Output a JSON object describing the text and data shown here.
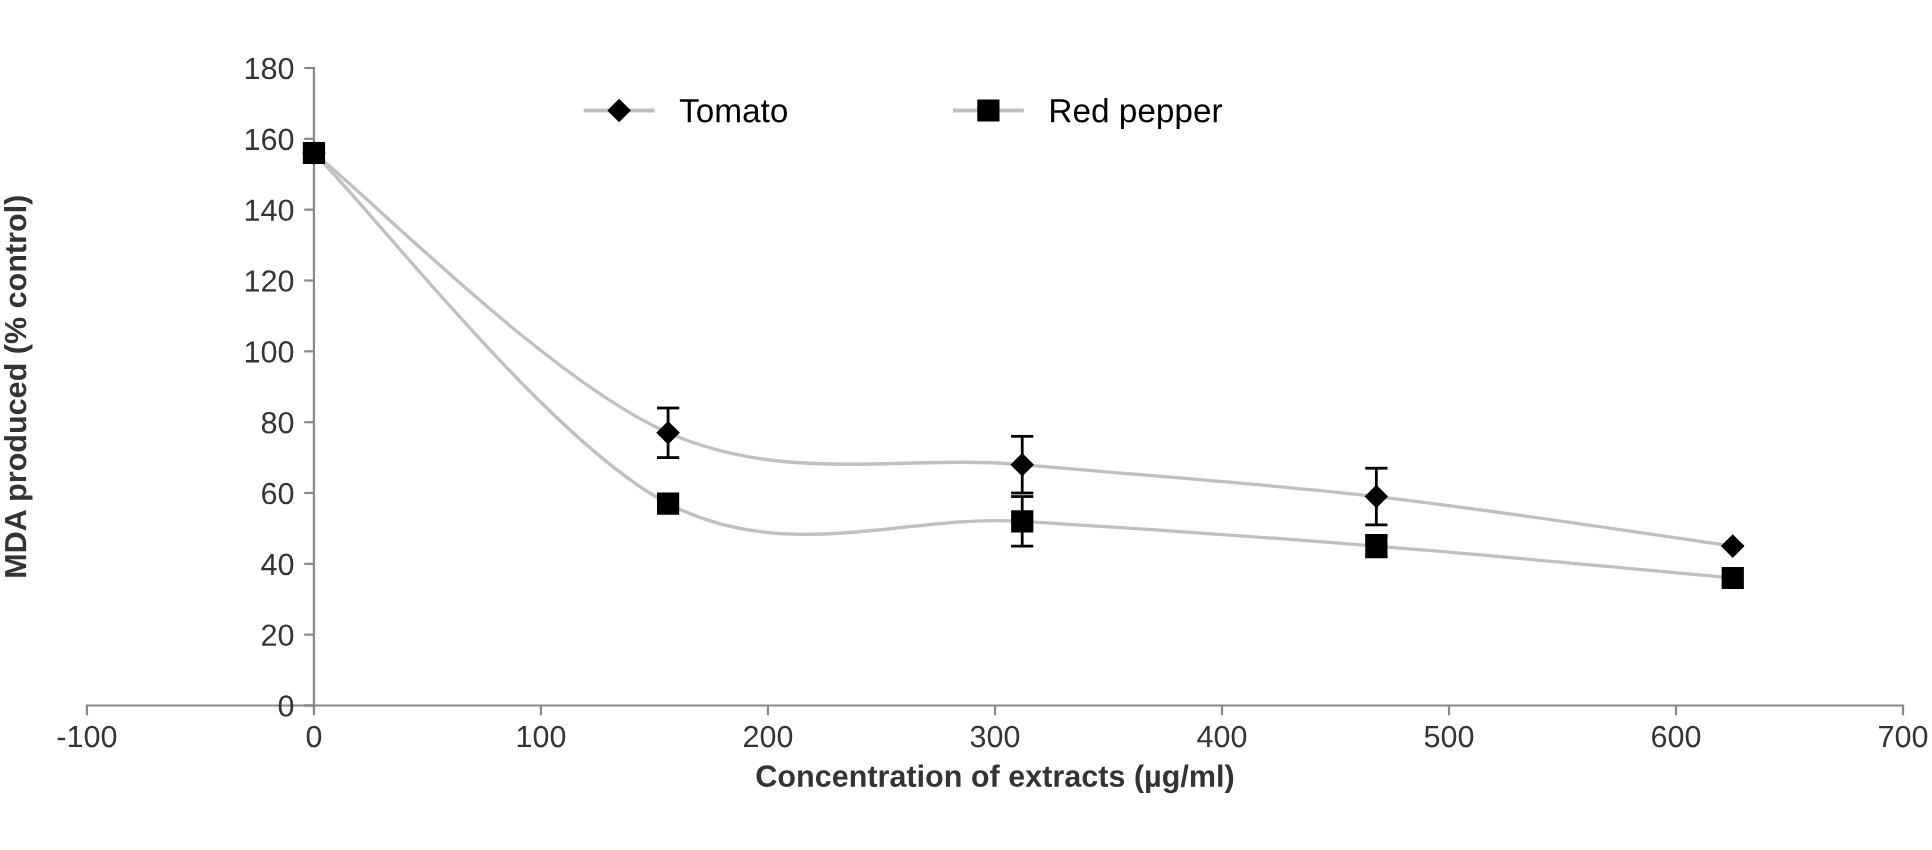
{
  "chart_data": {
    "type": "line",
    "xlabel": "Concentration of extracts (µg/ml)",
    "ylabel": "MDA produced (% control)",
    "x": [
      0,
      156,
      312,
      468,
      625
    ],
    "xlim": [
      -100,
      700
    ],
    "xticks": [
      -100,
      0,
      100,
      200,
      300,
      400,
      500,
      600,
      700
    ],
    "ylim": [
      0,
      180
    ],
    "yticks": [
      0,
      20,
      40,
      60,
      80,
      100,
      120,
      140,
      160,
      180
    ],
    "grid": false,
    "legend": "top",
    "series": [
      {
        "name": "Tomato",
        "color": "#000000",
        "marker": "diamond",
        "values": [
          156,
          77,
          68,
          59,
          45
        ],
        "errors": [
          null,
          7,
          8,
          8,
          null
        ]
      },
      {
        "name": "Red pepper",
        "color": "#000000",
        "marker": "square",
        "values": [
          156,
          57,
          52,
          45,
          36
        ],
        "errors": [
          null,
          null,
          7,
          3,
          null
        ]
      }
    ]
  }
}
